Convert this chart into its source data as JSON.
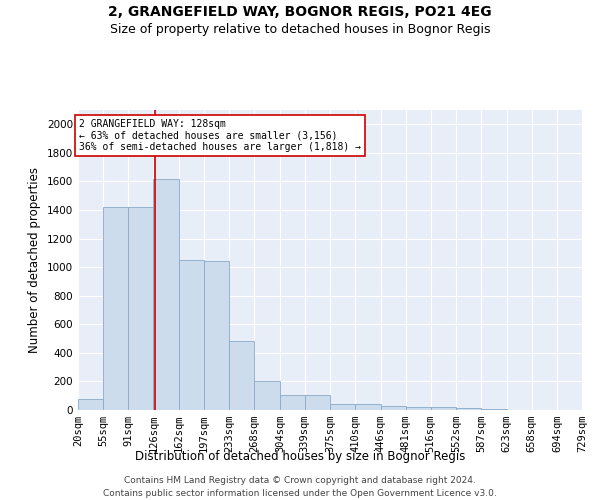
{
  "title1": "2, GRANGEFIELD WAY, BOGNOR REGIS, PO21 4EG",
  "title2": "Size of property relative to detached houses in Bognor Regis",
  "xlabel": "Distribution of detached houses by size in Bognor Regis",
  "ylabel": "Number of detached properties",
  "bar_color": "#ccdcec",
  "bar_edge_color": "#88aac8",
  "background_color": "#e8eef8",
  "grid_color": "#ffffff",
  "annotation_line_color": "#cc0000",
  "annotation_box_color": "#cc0000",
  "annotation_text": "2 GRANGEFIELD WAY: 128sqm\n← 63% of detached houses are smaller (3,156)\n36% of semi-detached houses are larger (1,818) →",
  "property_sqm": 128,
  "bin_edges": [
    20,
    55,
    91,
    126,
    162,
    197,
    233,
    268,
    304,
    339,
    375,
    410,
    446,
    481,
    516,
    552,
    587,
    623,
    658,
    694,
    729
  ],
  "bin_heights": [
    80,
    1420,
    1420,
    1620,
    1050,
    1040,
    480,
    200,
    105,
    105,
    40,
    40,
    25,
    20,
    18,
    15,
    5,
    3,
    2,
    1
  ],
  "ylim": [
    0,
    2100
  ],
  "yticks": [
    0,
    200,
    400,
    600,
    800,
    1000,
    1200,
    1400,
    1600,
    1800,
    2000
  ],
  "footer": "Contains HM Land Registry data © Crown copyright and database right 2024.\nContains public sector information licensed under the Open Government Licence v3.0.",
  "title1_fontsize": 10,
  "title2_fontsize": 9,
  "xlabel_fontsize": 8.5,
  "ylabel_fontsize": 8.5,
  "tick_fontsize": 7.5,
  "footer_fontsize": 6.5
}
